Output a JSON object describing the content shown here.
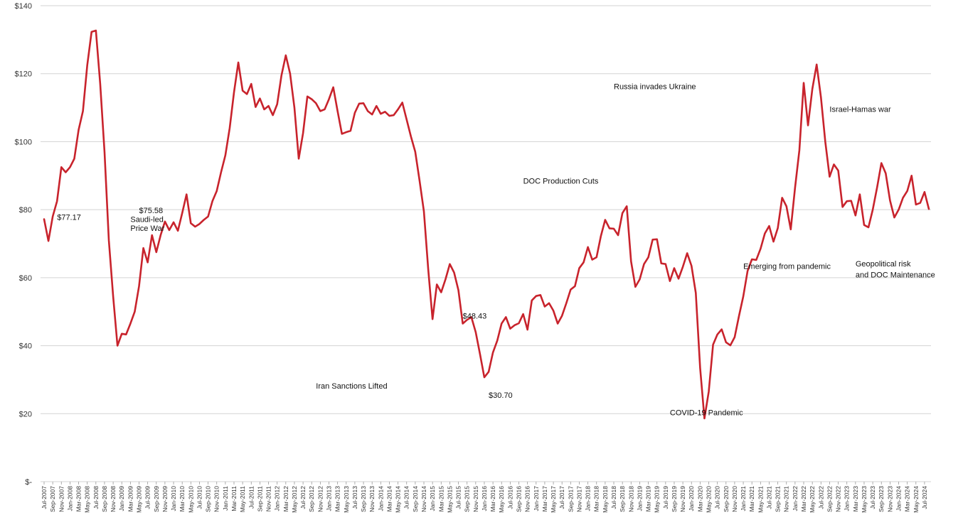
{
  "chart_data": {
    "type": "line",
    "title": "",
    "xlabel": "",
    "ylabel": "",
    "ylim": [
      0,
      140
    ],
    "y_ticks": [
      {
        "value": 0,
        "label": "$-"
      },
      {
        "value": 20,
        "label": "$20"
      },
      {
        "value": 40,
        "label": "$40"
      },
      {
        "value": 60,
        "label": "$60"
      },
      {
        "value": 80,
        "label": "$80"
      },
      {
        "value": 100,
        "label": "$100"
      },
      {
        "value": 120,
        "label": "$120"
      },
      {
        "value": 140,
        "label": "$140"
      }
    ],
    "grid": true,
    "line_color": "#c8232c",
    "x_tick_labels": [
      "Jul-2007",
      "Sep-2007",
      "Nov-2007",
      "Jan-2008",
      "Mar-2008",
      "May-2008",
      "Jul-2008",
      "Sep-2008",
      "Nov-2008",
      "Jan-2009",
      "Mar-2009",
      "May-2009",
      "Jul-2009",
      "Sep-2009",
      "Nov-2009",
      "Jan-2010",
      "Mar-2010",
      "May-2010",
      "Jul-2010",
      "Sep-2010",
      "Nov-2010",
      "Jan-2011",
      "Mar-2011",
      "May-2011",
      "Jul-2011",
      "Sep-2011",
      "Nov-2011",
      "Jan-2012",
      "Mar-2012",
      "May-2012",
      "Jul-2012",
      "Sep-2012",
      "Nov-2012",
      "Jan-2013",
      "Mar-2013",
      "May-2013",
      "Jul-2013",
      "Sep-2013",
      "Nov-2013",
      "Jan-2014",
      "Mar-2014",
      "May-2014",
      "Jul-2014",
      "Sep-2014",
      "Nov-2014",
      "Jan-2015",
      "Mar-2015",
      "May-2015",
      "Jul-2015",
      "Sep-2015",
      "Nov-2015",
      "Jan-2016",
      "Mar-2016",
      "May-2016",
      "Jul-2016",
      "Sep-2016",
      "Nov-2016",
      "Jan-2017",
      "Mar-2017",
      "May-2017",
      "Jul-2017",
      "Sep-2017",
      "Nov-2017",
      "Jan-2018",
      "Mar-2018",
      "May-2018",
      "Jul-2018",
      "Sep-2018",
      "Nov-2018",
      "Jan-2019",
      "Mar-2019",
      "May-2019",
      "Jul-2019",
      "Sep-2019",
      "Nov-2019",
      "Jan-2020",
      "Mar-2020",
      "May-2020",
      "Jul-2020",
      "Sep-2020",
      "Nov-2020",
      "Jan-2021",
      "Mar-2021",
      "May-2021",
      "Jul-2021",
      "Sep-2021",
      "Nov-2021",
      "Jan-2022",
      "Mar-2022",
      "May-2022",
      "Jul-2022",
      "Sep-2022",
      "Nov-2022",
      "Jan-2023",
      "Mar-2023",
      "May-2023",
      "Jul-2023",
      "Sep-2023",
      "Nov-2023",
      "Jan-2024",
      "Mar-2024",
      "May-2024",
      "Jul-2024"
    ],
    "series": [
      {
        "values": [
          77.2,
          70.8,
          78.0,
          82.5,
          92.5,
          91.0,
          92.5,
          95.0,
          103.5,
          109.0,
          122.5,
          132.3,
          132.7,
          117.0,
          97.0,
          71.0,
          54.5,
          40.0,
          43.5,
          43.3,
          46.5,
          50.0,
          57.5,
          68.7,
          64.5,
          72.5,
          67.5,
          72.5,
          76.5,
          74.0,
          76.3,
          73.8,
          79.0,
          84.5,
          76.0,
          75.0,
          75.8,
          77.0,
          78.0,
          82.5,
          85.5,
          91.0,
          96.0,
          104.0,
          114.5,
          123.3,
          115.0,
          114.0,
          117.0,
          110.2,
          112.7,
          109.5,
          110.5,
          107.8,
          111.0,
          119.5,
          125.4,
          120.0,
          110.0,
          95.0,
          102.5,
          113.3,
          112.5,
          111.3,
          109.0,
          109.5,
          112.5,
          116.0,
          109.0,
          102.3,
          102.8,
          103.2,
          108.5,
          111.2,
          111.3,
          109.0,
          108.0,
          110.5,
          108.2,
          108.8,
          107.6,
          107.8,
          109.5,
          111.5,
          106.5,
          101.5,
          97.0,
          88.5,
          79.5,
          62.5,
          47.8,
          58.0,
          55.7,
          59.5,
          64.0,
          61.5,
          56.3,
          46.5,
          47.6,
          48.4,
          44.0,
          37.5,
          30.7,
          32.3,
          38.0,
          41.5,
          46.5,
          48.4,
          45.0,
          46.0,
          46.6,
          49.3,
          44.7,
          53.3,
          54.6,
          54.9,
          51.5,
          52.5,
          50.3,
          46.5,
          48.8,
          52.5,
          56.5,
          57.5,
          62.8,
          64.5,
          69.0,
          65.3,
          66.0,
          72.2,
          77.0,
          74.5,
          74.4,
          72.5,
          79.0,
          81.0,
          64.8,
          57.3,
          59.5,
          64.0,
          66.0,
          71.2,
          71.3,
          64.2,
          64.0,
          59.0,
          62.8,
          59.7,
          63.2,
          67.2,
          63.5,
          55.5,
          33.5,
          18.6,
          26.5,
          40.3,
          43.3,
          44.8,
          41.0,
          40.1,
          42.5,
          48.7,
          54.5,
          62.0,
          65.4,
          65.2,
          68.5,
          73.0,
          75.2,
          70.6,
          74.6,
          83.5,
          81.0,
          74.2,
          86.5,
          97.5,
          117.3,
          104.8,
          115.5,
          122.7,
          113.0,
          100.0,
          89.7,
          93.3,
          91.5,
          80.8,
          82.5,
          82.6,
          78.3,
          84.5,
          75.5,
          74.8,
          80.0,
          86.5,
          93.7,
          90.7,
          82.7,
          77.7,
          80.0,
          83.5,
          85.5,
          90.0,
          81.5,
          82.0,
          85.2,
          80.2
        ]
      }
    ],
    "annotations": [
      {
        "text": "$77.17",
        "x_index": 3,
        "y": 77.0,
        "anchor": "start"
      },
      {
        "text": "$75.58",
        "x_index": 22,
        "y": 79.0,
        "anchor": "start"
      },
      {
        "text": "Saudi-led",
        "x_index": 20,
        "y": 76.4,
        "anchor": "start"
      },
      {
        "text": "Price War",
        "x_index": 20,
        "y": 73.8,
        "anchor": "start"
      },
      {
        "text": "Russia invades Ukraine",
        "x_index": 132,
        "y": 115.5,
        "anchor": "start"
      },
      {
        "text": "Israel-Hamas war",
        "x_index": 182,
        "y": 108.8,
        "anchor": "start"
      },
      {
        "text": "DOC Production Cuts",
        "x_index": 111,
        "y": 87.7,
        "anchor": "start"
      },
      {
        "text": "Geopolitical risk",
        "x_index": 188,
        "y": 63.3,
        "anchor": "start"
      },
      {
        "text": "and DOC Maintenance",
        "x_index": 188,
        "y": 60.1,
        "anchor": "start"
      },
      {
        "text": "Emerging from pandemic",
        "x_index": 162,
        "y": 62.6,
        "anchor": "start"
      },
      {
        "text": "$48.43",
        "x_index": 97,
        "y": 48.0,
        "anchor": "start"
      },
      {
        "text": "Iran Sanctions Lifted",
        "x_index": 63,
        "y": 27.4,
        "anchor": "start"
      },
      {
        "text": "$30.70",
        "x_index": 103,
        "y": 24.7,
        "anchor": "start"
      },
      {
        "text": "COVID-19 Pandemic",
        "x_index": 145,
        "y": 19.5,
        "anchor": "start"
      }
    ]
  }
}
